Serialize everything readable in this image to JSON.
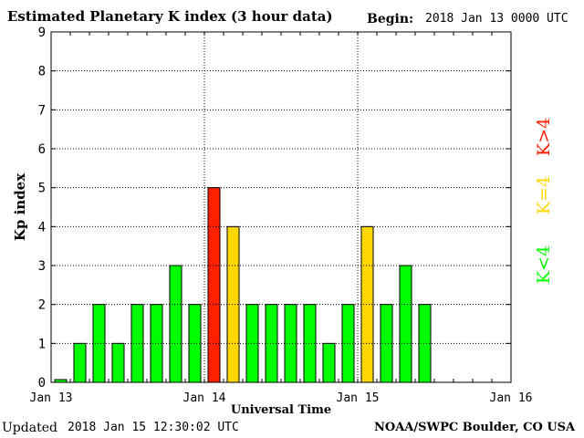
{
  "header": {
    "title": "Estimated Planetary K index (3 hour data)",
    "begin_label": "Begin:",
    "begin_value": "2018 Jan 13 0000 UTC"
  },
  "footer": {
    "updated_label": "Updated",
    "updated_value": "2018 Jan 15 12:30:02 UTC",
    "credit": "NOAA/SWPC Boulder, CO USA"
  },
  "colors": {
    "low": "#00ff00",
    "storm_threshold": "#ffd700",
    "storm": "#ff2000"
  },
  "chart_data": {
    "type": "bar",
    "title": "Estimated Planetary K index (3 hour data)",
    "xlabel": "Universal Time",
    "ylabel": "Kp index",
    "ylim": [
      0,
      9
    ],
    "yticks": [
      "0",
      "1",
      "2",
      "3",
      "4",
      "5",
      "6",
      "7",
      "8",
      "9"
    ],
    "xticks": [
      "Jan 13",
      "Jan 14",
      "Jan 15",
      "Jan 16"
    ],
    "grid": true,
    "bar_interval": "3 hours",
    "values": [
      0,
      1,
      2,
      1,
      2,
      2,
      3,
      2,
      5,
      4,
      2,
      2,
      2,
      2,
      1,
      2,
      4,
      2,
      3,
      2
    ],
    "legend": [
      {
        "label": "K<4",
        "color": "#00ff00"
      },
      {
        "label": "K=4",
        "color": "#ffd700"
      },
      {
        "label": "K>4",
        "color": "#ff2000"
      }
    ]
  }
}
